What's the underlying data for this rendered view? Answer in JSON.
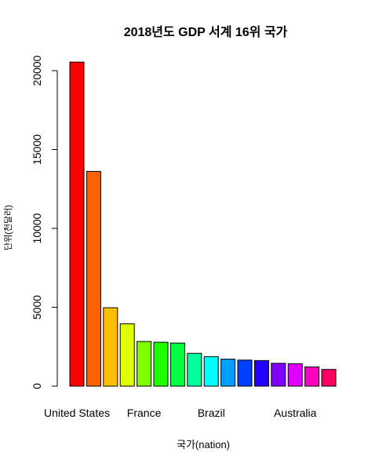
{
  "chart_data": {
    "type": "bar",
    "title": "2018년도 GDP 서계 16위 국가",
    "xlabel": "국가(nation)",
    "ylabel": "단위(천달러)",
    "ylim": [
      0,
      21000
    ],
    "yticks": [
      0,
      5000,
      10000,
      15000,
      20000
    ],
    "yticks_labels": [
      "0",
      "5000",
      "10000",
      "15000",
      "20000"
    ],
    "grid": false,
    "categories": [
      "United States",
      "",
      "",
      "",
      "France",
      "",
      "",
      "",
      "Brazil",
      "",
      "",
      "",
      "",
      "Australia",
      "",
      ""
    ],
    "values": [
      20540,
      13610,
      4970,
      3950,
      2830,
      2780,
      2730,
      2080,
      1870,
      1710,
      1650,
      1620,
      1450,
      1420,
      1220,
      1060
    ],
    "colors": [
      "#FF0000",
      "#FF6000",
      "#FFBF00",
      "#DFFF00",
      "#80FF00",
      "#20FF00",
      "#00FF40",
      "#00FF9F",
      "#00FFFF",
      "#009FFF",
      "#0040FF",
      "#2000FF",
      "#8000FF",
      "#DF00FF",
      "#FF00BF",
      "#FF0060"
    ],
    "bar_border": "#000000"
  }
}
